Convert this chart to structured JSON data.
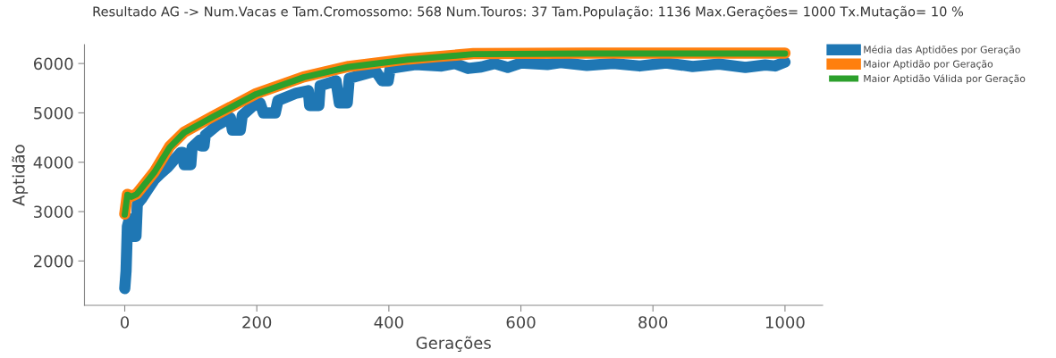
{
  "chart_data": {
    "type": "line",
    "title": "Resultado AG -> Num.Vacas e Tam.Cromossomo: 568 Num.Touros: 37 Tam.População: 1136 Max.Gerações= 1000 Tx.Mutação= 10 %",
    "xlabel": "Gerações",
    "ylabel": "Aptidão",
    "xlim": [
      -61,
      1057
    ],
    "ylim": [
      1100,
      6380
    ],
    "xticks": [
      0,
      200,
      400,
      600,
      800,
      1000
    ],
    "yticks": [
      2000,
      3000,
      4000,
      5000,
      6000
    ],
    "grid": false,
    "legend": "top right",
    "marker": "none",
    "line_style": "solid",
    "series": [
      {
        "name": "Média das Aptidões por Geração",
        "color": "#1f77b4",
        "x": [
          0,
          2,
          4,
          7,
          9,
          11,
          17,
          19,
          25,
          35,
          45,
          55,
          65,
          75,
          85,
          88,
          90,
          100,
          102,
          110,
          114,
          116,
          120,
          122,
          140,
          160,
          163,
          175,
          178,
          195,
          205,
          210,
          228,
          232,
          260,
          278,
          280,
          294,
          296,
          320,
          325,
          337,
          340,
          380,
          390,
          399,
          402,
          440,
          480,
          500,
          520,
          540,
          560,
          580,
          600,
          640,
          660,
          700,
          740,
          780,
          820,
          860,
          900,
          940,
          970,
          985,
          1000
        ],
        "values": [
          1440,
          1800,
          2700,
          2850,
          2850,
          2500,
          2500,
          3150,
          3250,
          3450,
          3650,
          3780,
          3900,
          4050,
          4200,
          4200,
          3950,
          3950,
          4300,
          4400,
          4450,
          4330,
          4330,
          4550,
          4750,
          4900,
          4650,
          4650,
          4950,
          5150,
          5200,
          5000,
          5000,
          5250,
          5400,
          5450,
          5150,
          5150,
          5550,
          5650,
          5200,
          5200,
          5700,
          5850,
          5650,
          5650,
          5900,
          5980,
          5950,
          6000,
          5900,
          5930,
          6000,
          5920,
          6010,
          5980,
          6020,
          5960,
          6000,
          5950,
          6010,
          5940,
          5990,
          5920,
          5970,
          5950,
          6030
        ]
      },
      {
        "name": "Maior Aptidão por Geração",
        "color": "#ff7f0e",
        "x": [
          0,
          4,
          10,
          18,
          30,
          45,
          68,
          90,
          135,
          199,
          271,
          339,
          429,
          474,
          528,
          700,
          1000
        ],
        "values": [
          2950,
          3350,
          3310,
          3360,
          3560,
          3810,
          4320,
          4610,
          4940,
          5390,
          5730,
          5940,
          6090,
          6140,
          6200,
          6210,
          6210
        ]
      },
      {
        "name": "Maior Aptidão Válida por Geração",
        "color": "#2ca02c",
        "x": [
          0,
          4,
          10,
          18,
          30,
          45,
          68,
          90,
          135,
          199,
          271,
          339,
          429,
          474,
          528,
          700,
          1000
        ],
        "values": [
          2940,
          3340,
          3300,
          3350,
          3550,
          3800,
          4300,
          4600,
          4930,
          5380,
          5720,
          5930,
          6080,
          6130,
          6190,
          6200,
          6200
        ]
      }
    ]
  }
}
